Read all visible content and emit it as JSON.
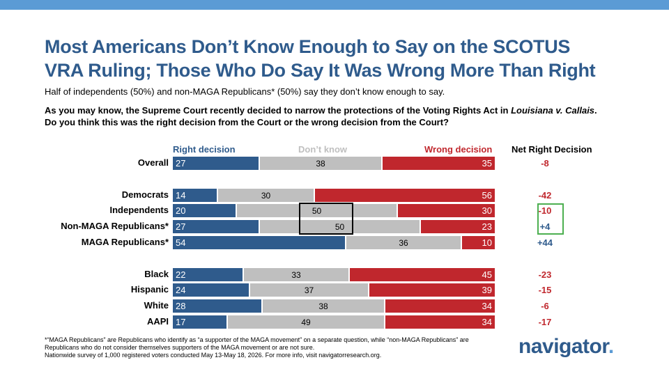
{
  "title_line1": "Most Americans Don’t Know Enough to Say on the SCOTUS",
  "title_line2": "VRA Ruling; Those Who Do Say It Was Wrong More Than Right",
  "subtitle": "Half of independents (50%) and non-MAGA Republicans* (50%) say they don’t know enough to say.",
  "question_part1": "As you may know, the Supreme Court recently decided to narrow the protections of the Voting Rights Act in ",
  "question_case": "Louisiana v. Callais",
  "question_part2": ".",
  "question_line2": "Do you think this was the right decision from the Court or the wrong decision from the Court?",
  "footnote": [
    "*“MAGA Republicans” are Republicans who identify as “a supporter of the MAGA movement” on a separate question, while “non-MAGA Republicans” are",
    "Republicans who do not consider themselves supporters of the MAGA movement or are not sure.",
    "Nationwide survey of 1,000 registered voters conducted May 13-May 18, 2026. For more info, visit navigatorresearch.org."
  ],
  "logo": {
    "text": "navigator",
    "dot": "."
  },
  "colors": {
    "right": "#2f5b8c",
    "dont_know": "#bfbfbf",
    "wrong": "#c0272d",
    "net_positive": "#2f5b8c",
    "net_negative": "#c0272d",
    "highlight_box": "#000000",
    "net_highlight_box": "#4caf50",
    "topbar": "#5b9bd5"
  },
  "chart_data": {
    "type": "bar",
    "orientation": "horizontal-stacked",
    "series": [
      {
        "name": "Right decision",
        "values": [
          27,
          14,
          20,
          27,
          54,
          22,
          24,
          28,
          17
        ]
      },
      {
        "name": "Don’t know",
        "values": [
          38,
          30,
          50,
          50,
          36,
          33,
          37,
          38,
          49
        ]
      },
      {
        "name": "Wrong decision",
        "values": [
          35,
          56,
          30,
          23,
          10,
          45,
          39,
          34,
          34
        ]
      }
    ],
    "net_header": "Net Right Decision",
    "net_values": [
      "-8",
      "-42",
      "-10",
      "+4",
      "+44",
      "-23",
      "-15",
      "-6",
      "-17"
    ],
    "categories": [
      "Overall",
      "Democrats",
      "Independents",
      "Non-MAGA Republicans*",
      "MAGA Republicans*",
      "Black",
      "Hispanic",
      "White",
      "AAPI"
    ],
    "xlim": [
      0,
      100
    ],
    "highlighted_categories": [
      "Independents",
      "Non-MAGA Republicans*"
    ]
  }
}
